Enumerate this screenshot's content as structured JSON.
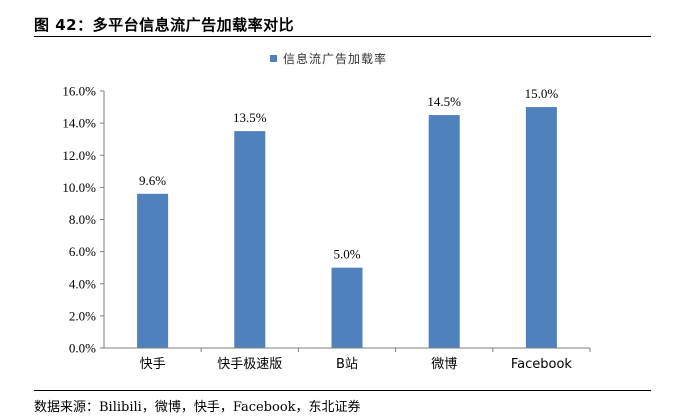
{
  "figure": {
    "title": "图 42：多平台信息流广告加载率对比",
    "source": "数据来源：Bilibili，微博，快手，Facebook，东北证券"
  },
  "chart_data": {
    "type": "bar",
    "categories": [
      "快手",
      "快手极速版",
      "B站",
      "微博",
      "Facebook"
    ],
    "series": [
      {
        "name": "信息流广告加载率",
        "values": [
          9.6,
          13.5,
          5.0,
          14.5,
          15.0
        ],
        "labels": [
          "9.6%",
          "13.5%",
          "5.0%",
          "14.5%",
          "15.0%"
        ],
        "color": "#4F81BD"
      }
    ],
    "ylim": [
      0,
      16
    ],
    "yticks": [
      0,
      2,
      4,
      6,
      8,
      10,
      12,
      14,
      16
    ],
    "ytick_labels": [
      "0.0%",
      "2.0%",
      "4.0%",
      "6.0%",
      "8.0%",
      "10.0%",
      "12.0%",
      "14.0%",
      "16.0%"
    ],
    "grid": false,
    "legend_position": "top-center"
  }
}
